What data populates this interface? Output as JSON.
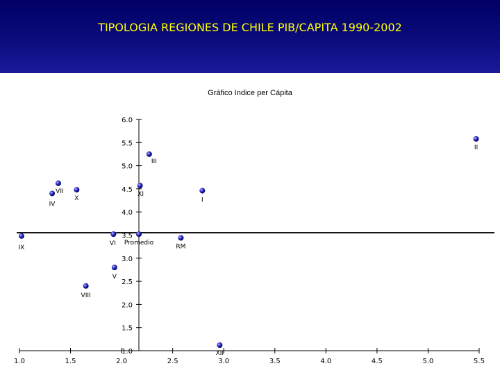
{
  "header": {
    "title": "TIPOLOGIA REGIONES DE CHILE PIB/CAPITA 1990-2002"
  },
  "chart_data": {
    "type": "scatter",
    "title": "Gráfico Indice per Cápita",
    "xlabel": "",
    "ylabel": "",
    "xlim": [
      1.0,
      5.5
    ],
    "ylim": [
      1.0,
      6.0
    ],
    "x_ticks": [
      "1.0",
      "1.5",
      "2.0",
      "2.5",
      "3.0",
      "3.5",
      "4.0",
      "4.5",
      "5.0",
      "5.5"
    ],
    "y_ticks": [
      "1.0",
      "1.5",
      "2.0",
      "2.5",
      "3.0",
      "3.5",
      "4.0",
      "4.5",
      "5.0",
      "5.5",
      "6.0"
    ],
    "reference_line": {
      "y": 3.55,
      "label": "Promedio"
    },
    "point_color": "#3333cc",
    "points": [
      {
        "label": "II",
        "x": 5.47,
        "y": 5.58
      },
      {
        "label": "III",
        "x": 2.27,
        "y": 5.25
      },
      {
        "label": "VII",
        "x": 1.38,
        "y": 4.62
      },
      {
        "label": "IV",
        "x": 1.32,
        "y": 4.4
      },
      {
        "label": "X",
        "x": 1.56,
        "y": 4.48
      },
      {
        "label": "XI",
        "x": 2.18,
        "y": 4.57
      },
      {
        "label": "I",
        "x": 2.79,
        "y": 4.46
      },
      {
        "label": "IX",
        "x": 1.02,
        "y": 3.48
      },
      {
        "label": "VI",
        "x": 1.92,
        "y": 3.52
      },
      {
        "label": "RM",
        "x": 2.58,
        "y": 3.44
      },
      {
        "label": "V",
        "x": 1.93,
        "y": 2.8
      },
      {
        "label": "VIII",
        "x": 1.65,
        "y": 2.4
      },
      {
        "label": "XII",
        "x": 2.96,
        "y": 1.12
      }
    ]
  }
}
